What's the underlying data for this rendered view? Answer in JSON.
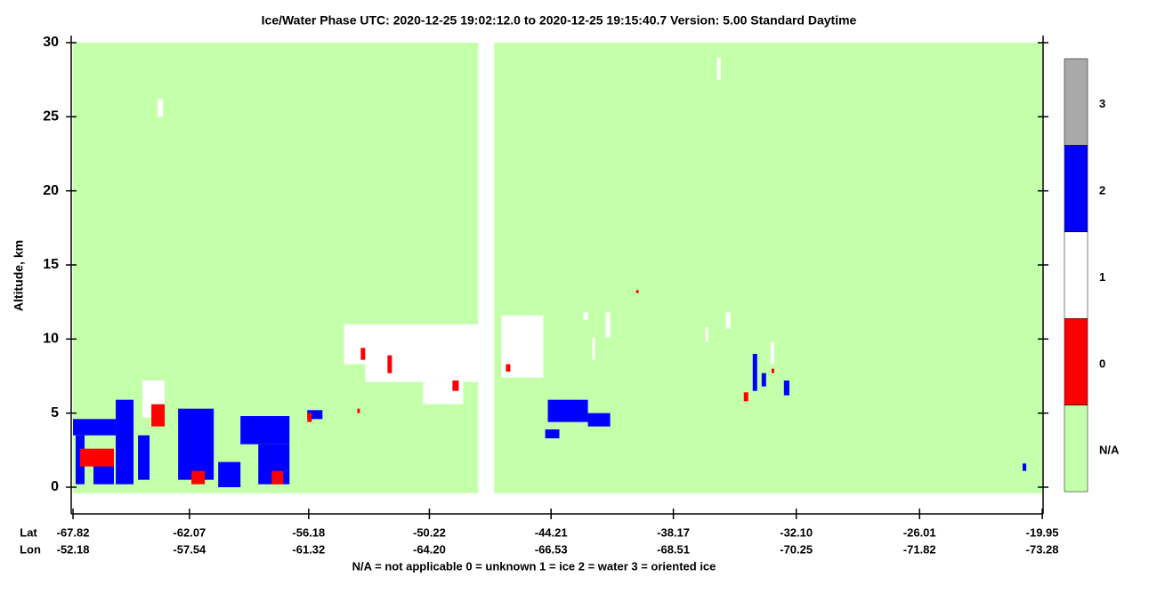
{
  "chart_data": {
    "type": "phase",
    "title": "Ice/Water Phase    UTC:  2020-12-25    19:02:12.0  to  2020-12-25    19:15:40.7    Version: 5.00  Standard Daytime",
    "ylabel": "Altitude, km",
    "ylim": [
      -1.8,
      30
    ],
    "yticks": [
      0,
      5,
      10,
      15,
      20,
      25,
      30
    ],
    "xlim": [
      -67.91,
      -19.91
    ],
    "xticks": [
      -67.82,
      -62.07,
      -56.18,
      -50.22,
      -44.21,
      -38.17,
      {
        "value": -32.1,
        "label": "-32.10"
      },
      -26.01,
      -19.95
    ],
    "lon_labels": [
      "-52.18",
      "-57.54",
      "-61.32",
      "-64.20",
      "-66.53",
      "-68.51",
      "-70.25",
      "-71.82",
      "-73.28"
    ],
    "row_labels": [
      "Lat",
      "Lon"
    ],
    "footnote": "N/A = not applicable     0 = unknown     1 = ice     2 = water     3 = oriented ice",
    "na_extent": {
      "x0": [
        -67.82,
        -47.02
      ],
      "x1": [
        -47.81,
        -19.95
      ],
      "alt": [
        -0.4,
        30
      ]
    },
    "classes": {
      "categories": [
        "N/A",
        "0",
        "1",
        "2",
        "3"
      ],
      "colors": [
        "#c4ffaa",
        "#ff0000",
        "#ffffff",
        "#0000ff",
        "#a9a9a9"
      ]
    },
    "series": [
      {
        "class": "1",
        "x0": [
          -54.44,
          -53.39,
          -50.53,
          -46.66,
          -63.64,
          -64.39,
          -36.01,
          -41.51,
          -42.61,
          -42.17,
          -35.57,
          -36.58,
          -33.37
        ],
        "x1": [
          -47.45,
          -47.67,
          -48.55,
          -44.59,
          -63.38,
          -63.29,
          -35.83,
          -41.29,
          -42.39,
          -42.04,
          -35.35,
          -36.45,
          -33.19
        ],
        "y0": [
          8.3,
          7.1,
          5.6,
          7.4,
          25.0,
          4.7,
          27.5,
          10.1,
          11.3,
          8.6,
          10.7,
          9.8,
          8.3
        ],
        "y1": [
          11.0,
          8.6,
          7.1,
          11.6,
          26.2,
          7.2,
          29.0,
          11.8,
          11.8,
          10.1,
          11.8,
          10.8,
          9.8
        ]
      },
      {
        "class": "2",
        "x0": [
          -67.82,
          -67.69,
          -66.81,
          -65.71,
          -64.61,
          -62.63,
          -60.65,
          -59.55,
          -58.67,
          -56.25,
          -44.37,
          -44.5,
          -42.39,
          -34.25,
          -33.81,
          -32.71,
          -20.92
        ],
        "x1": [
          -65.71,
          -67.25,
          -65.8,
          -64.83,
          -64.04,
          -60.87,
          -59.55,
          -57.13,
          -57.13,
          -55.5,
          -42.39,
          -43.8,
          -41.29,
          -34.03,
          -33.59,
          -32.44,
          -20.74
        ],
        "y0": [
          3.5,
          0.2,
          0.2,
          0.2,
          0.5,
          0.5,
          0,
          2.9,
          0.2,
          4.6,
          4.4,
          3.3,
          4.1,
          6.5,
          6.8,
          6.2,
          1.1
        ],
        "y1": [
          4.6,
          3.5,
          2.0,
          5.9,
          3.5,
          5.3,
          1.7,
          4.8,
          2.9,
          5.2,
          5.9,
          3.9,
          5.0,
          9.0,
          7.7,
          7.2,
          1.6
        ]
      },
      {
        "class": "0",
        "x0": [
          -67.47,
          -63.95,
          -61.97,
          -58.01,
          -56.25,
          -53.78,
          -53.61,
          -52.29,
          -49.08,
          -46.44,
          -34.69,
          -33.32,
          -40.01
        ],
        "x1": [
          -65.8,
          -63.29,
          -61.31,
          -57.44,
          -56.03,
          -53.65,
          -53.39,
          -52.07,
          -48.77,
          -46.22,
          -34.47,
          -33.19,
          -39.88
        ],
        "y0": [
          1.4,
          4.1,
          0.2,
          0.2,
          4.4,
          5.0,
          8.6,
          7.7,
          6.5,
          7.8,
          5.8,
          7.7,
          13.1
        ],
        "y1": [
          2.6,
          5.6,
          1.1,
          1.1,
          5.0,
          5.3,
          9.4,
          8.9,
          7.2,
          8.3,
          6.4,
          8.0,
          13.3
        ]
      }
    ]
  }
}
